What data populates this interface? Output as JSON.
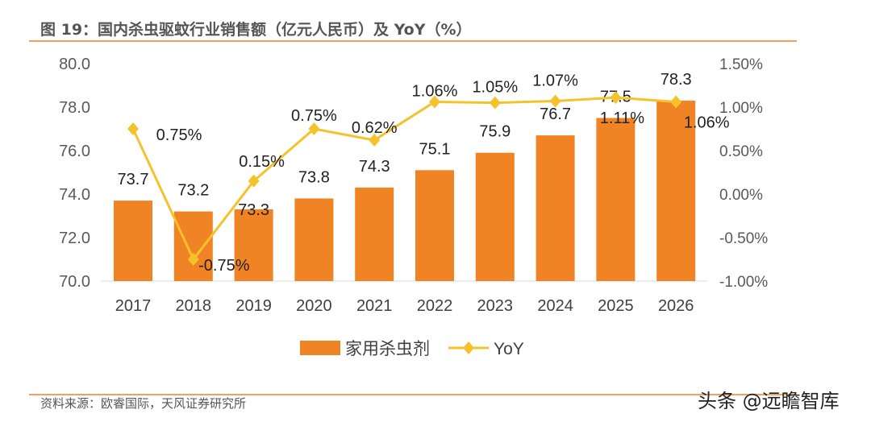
{
  "title": "图 19：国内杀虫驱蚊行业销售额（亿元人民币）及 YoY（%）",
  "source": "资料来源：欧睿国际，天风证券研究所",
  "watermark": "头条 @远瞻智库",
  "chart_data": {
    "type": "bar+line",
    "categories": [
      "2017",
      "2018",
      "2019",
      "2020",
      "2021",
      "2022",
      "2023",
      "2024",
      "2025",
      "2026"
    ],
    "series": [
      {
        "name": "家用杀虫剂",
        "type": "bar",
        "axis": "left",
        "color": "#f08424",
        "values": [
          73.7,
          73.2,
          73.3,
          73.8,
          74.3,
          75.1,
          75.9,
          76.7,
          77.5,
          78.3
        ],
        "labels": [
          "73.7",
          "73.2",
          "73.3",
          "73.8",
          "74.3",
          "75.1",
          "75.9",
          "76.7",
          "77.5",
          "78.3"
        ]
      },
      {
        "name": "YoY",
        "type": "line",
        "axis": "right",
        "color": "#f5c22b",
        "values": [
          0.75,
          -0.75,
          0.15,
          0.75,
          0.62,
          1.06,
          1.05,
          1.07,
          1.11,
          1.06
        ],
        "labels": [
          "0.75%",
          "-0.75%",
          "0.15%",
          "0.75%",
          "0.62%",
          "1.06%",
          "1.05%",
          "1.07%",
          "1.11%",
          "1.06%"
        ]
      }
    ],
    "y_left": {
      "min": 70,
      "max": 80,
      "ticks": [
        "70.0",
        "72.0",
        "74.0",
        "76.0",
        "78.0",
        "80.0"
      ]
    },
    "y_right": {
      "min": -1.0,
      "max": 1.5,
      "ticks": [
        "-1.00%",
        "-0.50%",
        "0.00%",
        "0.50%",
        "1.00%",
        "1.50%"
      ]
    },
    "grid": false,
    "legend": "bottom"
  }
}
